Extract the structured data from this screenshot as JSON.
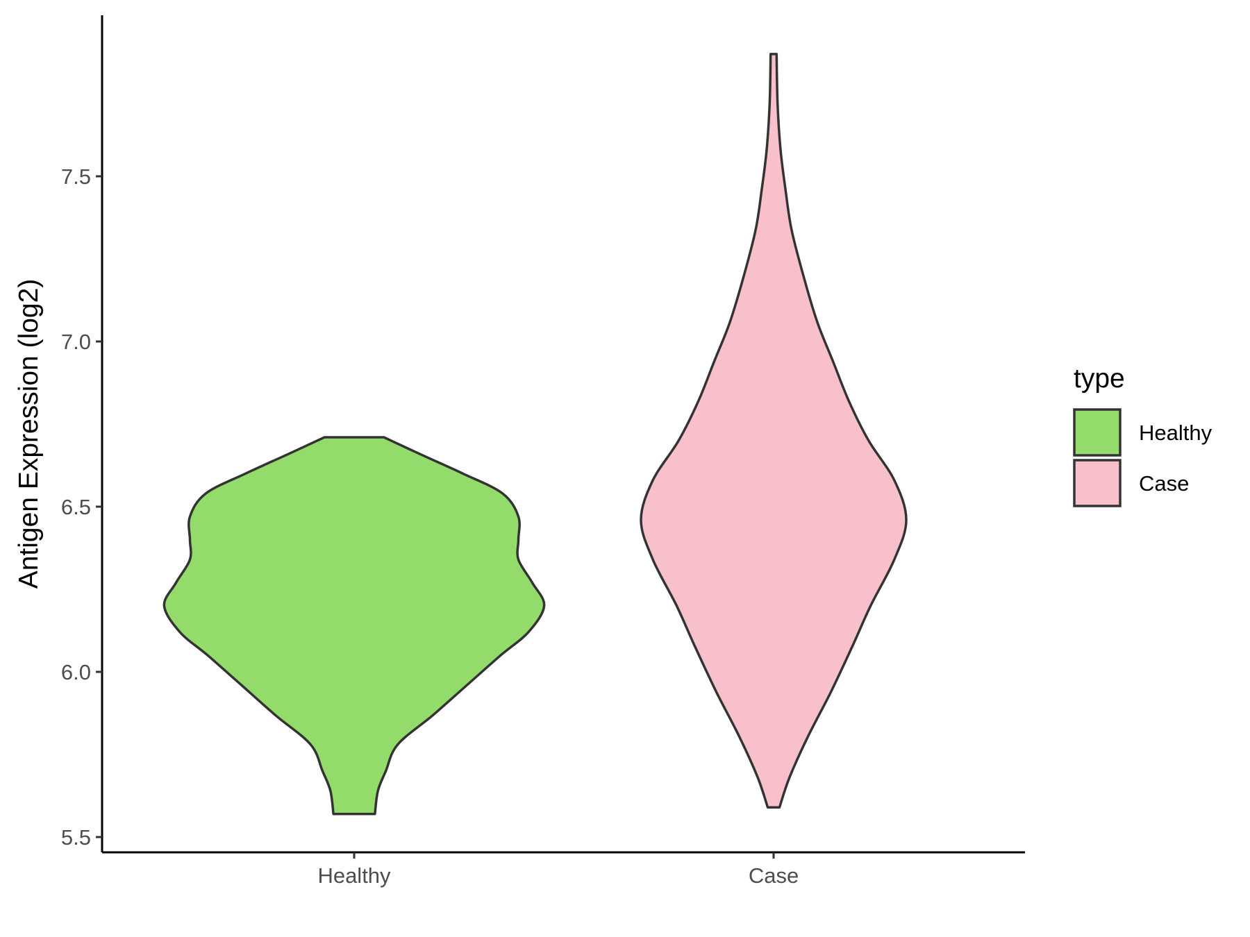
{
  "chart_data": {
    "type": "violin",
    "title": "",
    "xlabel": "",
    "ylabel": "Antigen Expression (log2)",
    "categories": [
      "Healthy",
      "Case"
    ],
    "ylim": [
      5.47,
      7.99
    ],
    "yticks": [
      5.5,
      6.0,
      6.5,
      7.0,
      7.5
    ],
    "ytick_labels": [
      "5.5",
      "6.0",
      "6.5",
      "7.0",
      "7.5"
    ],
    "legend": {
      "title": "type",
      "placement": "right",
      "entries": [
        {
          "label": "Healthy",
          "color": "#93DC6B"
        },
        {
          "label": "Case",
          "color": "#F8C0CB"
        }
      ]
    },
    "series": [
      {
        "category": "Healthy",
        "color": "#93DC6B",
        "min": 5.57,
        "max": 6.71,
        "density": [
          [
            5.57,
            0.105
          ],
          [
            5.64,
            0.12
          ],
          [
            5.7,
            0.16
          ],
          [
            5.78,
            0.22
          ],
          [
            5.87,
            0.4
          ],
          [
            5.96,
            0.57
          ],
          [
            6.05,
            0.74
          ],
          [
            6.12,
            0.88
          ],
          [
            6.2,
            0.96
          ],
          [
            6.27,
            0.9
          ],
          [
            6.34,
            0.83
          ],
          [
            6.4,
            0.83
          ],
          [
            6.47,
            0.83
          ],
          [
            6.54,
            0.75
          ],
          [
            6.6,
            0.55
          ],
          [
            6.66,
            0.33
          ],
          [
            6.71,
            0.15
          ]
        ]
      },
      {
        "category": "Case",
        "color": "#F8C0CB",
        "min": 5.59,
        "max": 7.87,
        "density": [
          [
            5.59,
            0.03
          ],
          [
            5.68,
            0.08
          ],
          [
            5.8,
            0.17
          ],
          [
            5.94,
            0.29
          ],
          [
            6.08,
            0.4
          ],
          [
            6.2,
            0.49
          ],
          [
            6.34,
            0.61
          ],
          [
            6.46,
            0.67
          ],
          [
            6.58,
            0.61
          ],
          [
            6.7,
            0.48
          ],
          [
            6.82,
            0.38
          ],
          [
            6.94,
            0.3
          ],
          [
            7.06,
            0.22
          ],
          [
            7.2,
            0.15
          ],
          [
            7.34,
            0.09
          ],
          [
            7.46,
            0.06
          ],
          [
            7.58,
            0.035
          ],
          [
            7.72,
            0.02
          ],
          [
            7.87,
            0.015
          ]
        ]
      }
    ]
  }
}
